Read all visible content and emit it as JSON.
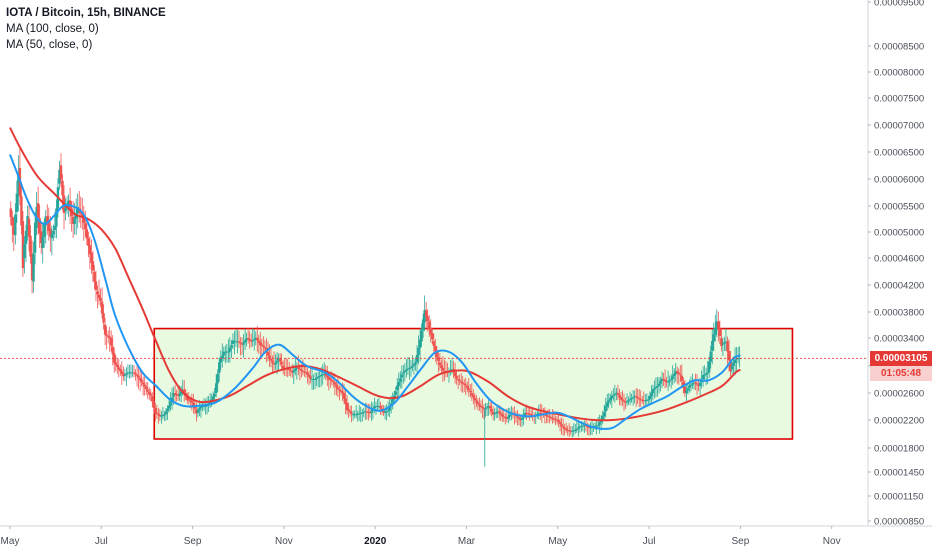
{
  "legend": {
    "title": "IOTA / Bitcoin, 15h, BINANCE",
    "ma100": "MA (100, close, 0)",
    "ma50": "MA (50, close, 0)"
  },
  "colors": {
    "ma100": "#e53935",
    "ma50": "#2196f3",
    "up_candle": "#26a69a",
    "down_candle": "#ef5350",
    "range_fill": "#e8fbe0",
    "range_stroke": "#e00000",
    "price_tag": "#e53935"
  },
  "price_tag": {
    "price": "0.00003105",
    "countdown": "01:05:48"
  },
  "chart_data": {
    "type": "line",
    "title": "IOTA / Bitcoin, 15h, BINANCE",
    "y_scale": "log",
    "ylim": [
      8.1e-06,
      1.1e-05
    ],
    "y_ticks": [
      "0.00000850",
      "0.00001150",
      "0.00001450",
      "0.00001800",
      "0.00002200",
      "0.00002600",
      "0.00003000",
      "0.00003400",
      "0.00003800",
      "0.00004200",
      "0.00004600",
      "0.00005000",
      "0.00005500",
      "0.00006000",
      "0.00006500",
      "0.00007000",
      "0.00007500",
      "0.00008000",
      "0.00008500",
      "0.00009500"
    ],
    "x_ticks": [
      {
        "label": "May",
        "t": 0.0
      },
      {
        "label": "Jul",
        "t": 1.0
      },
      {
        "label": "Sep",
        "t": 2.0
      },
      {
        "label": "Nov",
        "t": 3.0
      },
      {
        "label": "2020",
        "t": 4.0,
        "bold": true
      },
      {
        "label": "Mar",
        "t": 5.0
      },
      {
        "label": "May",
        "t": 6.0
      },
      {
        "label": "Jul",
        "t": 7.0
      },
      {
        "label": "Sep",
        "t": 8.0
      },
      {
        "label": "Nov",
        "t": 9.0
      }
    ],
    "range_box": {
      "t_start": 1.58,
      "t_end": 8.57,
      "y_low": 1.92e-05,
      "y_high": 3.54e-05
    },
    "current_price": 3.105e-05,
    "series": [
      {
        "name": "MA (100, close, 0)",
        "points": [
          [
            0.0,
            6.95e-05
          ],
          [
            0.12,
            6.55e-05
          ],
          [
            0.3,
            6.05e-05
          ],
          [
            0.5,
            5.7e-05
          ],
          [
            0.7,
            5.35e-05
          ],
          [
            0.85,
            5.25e-05
          ],
          [
            1.0,
            5.05e-05
          ],
          [
            1.15,
            4.75e-05
          ],
          [
            1.3,
            4.3e-05
          ],
          [
            1.45,
            3.85e-05
          ],
          [
            1.6,
            3.35e-05
          ],
          [
            1.75,
            2.9e-05
          ],
          [
            1.9,
            2.6e-05
          ],
          [
            2.05,
            2.47e-05
          ],
          [
            2.2,
            2.47e-05
          ],
          [
            2.4,
            2.55e-05
          ],
          [
            2.6,
            2.7e-05
          ],
          [
            2.8,
            2.85e-05
          ],
          [
            3.0,
            2.95e-05
          ],
          [
            3.2,
            3e-05
          ],
          [
            3.4,
            2.95e-05
          ],
          [
            3.6,
            2.83e-05
          ],
          [
            3.8,
            2.7e-05
          ],
          [
            4.0,
            2.57e-05
          ],
          [
            4.15,
            2.52e-05
          ],
          [
            4.3,
            2.55e-05
          ],
          [
            4.5,
            2.7e-05
          ],
          [
            4.7,
            2.87e-05
          ],
          [
            4.9,
            2.93e-05
          ],
          [
            5.05,
            2.9e-05
          ],
          [
            5.25,
            2.75e-05
          ],
          [
            5.45,
            2.55e-05
          ],
          [
            5.65,
            2.4e-05
          ],
          [
            5.85,
            2.32e-05
          ],
          [
            6.0,
            2.28e-05
          ],
          [
            6.2,
            2.23e-05
          ],
          [
            6.4,
            2.2e-05
          ],
          [
            6.6,
            2.2e-05
          ],
          [
            6.8,
            2.23e-05
          ],
          [
            7.0,
            2.28e-05
          ],
          [
            7.2,
            2.35e-05
          ],
          [
            7.4,
            2.45e-05
          ],
          [
            7.6,
            2.57e-05
          ],
          [
            7.8,
            2.7e-05
          ],
          [
            7.95,
            2.9e-05
          ],
          [
            8.0,
            2.94e-05
          ]
        ]
      },
      {
        "name": "MA (50, close, 0)",
        "points": [
          [
            0.0,
            6.45e-05
          ],
          [
            0.08,
            6.1e-05
          ],
          [
            0.18,
            5.65e-05
          ],
          [
            0.28,
            5.3e-05
          ],
          [
            0.38,
            5.15e-05
          ],
          [
            0.48,
            5.3e-05
          ],
          [
            0.58,
            5.5e-05
          ],
          [
            0.68,
            5.5e-05
          ],
          [
            0.8,
            5.35e-05
          ],
          [
            0.92,
            4.9e-05
          ],
          [
            1.05,
            4.25e-05
          ],
          [
            1.15,
            3.75e-05
          ],
          [
            1.3,
            3.25e-05
          ],
          [
            1.45,
            2.9e-05
          ],
          [
            1.6,
            2.7e-05
          ],
          [
            1.75,
            2.5e-05
          ],
          [
            1.9,
            2.4e-05
          ],
          [
            2.05,
            2.4e-05
          ],
          [
            2.25,
            2.45e-05
          ],
          [
            2.45,
            2.65e-05
          ],
          [
            2.65,
            2.95e-05
          ],
          [
            2.8,
            3.2e-05
          ],
          [
            2.95,
            3.3e-05
          ],
          [
            3.1,
            3.15e-05
          ],
          [
            3.25,
            3e-05
          ],
          [
            3.45,
            2.9e-05
          ],
          [
            3.6,
            2.75e-05
          ],
          [
            3.75,
            2.55e-05
          ],
          [
            3.9,
            2.4e-05
          ],
          [
            4.05,
            2.33e-05
          ],
          [
            4.2,
            2.43e-05
          ],
          [
            4.35,
            2.68e-05
          ],
          [
            4.5,
            2.95e-05
          ],
          [
            4.65,
            3.18e-05
          ],
          [
            4.8,
            3.2e-05
          ],
          [
            4.95,
            3.05e-05
          ],
          [
            5.1,
            2.75e-05
          ],
          [
            5.25,
            2.5e-05
          ],
          [
            5.4,
            2.35e-05
          ],
          [
            5.55,
            2.27e-05
          ],
          [
            5.7,
            2.25e-05
          ],
          [
            5.85,
            2.28e-05
          ],
          [
            6.0,
            2.3e-05
          ],
          [
            6.15,
            2.23e-05
          ],
          [
            6.3,
            2.13e-05
          ],
          [
            6.45,
            2.07e-05
          ],
          [
            6.6,
            2.08e-05
          ],
          [
            6.75,
            2.22e-05
          ],
          [
            6.9,
            2.35e-05
          ],
          [
            7.05,
            2.45e-05
          ],
          [
            7.2,
            2.55e-05
          ],
          [
            7.35,
            2.68e-05
          ],
          [
            7.5,
            2.78e-05
          ],
          [
            7.65,
            2.78e-05
          ],
          [
            7.8,
            2.9e-05
          ],
          [
            7.92,
            3.1e-05
          ],
          [
            8.0,
            3.15e-05
          ]
        ]
      },
      {
        "name": "Price",
        "points": [
          [
            0.0,
            5.45e-05
          ],
          [
            0.05,
            4.95e-05
          ],
          [
            0.1,
            6.2e-05
          ],
          [
            0.15,
            4.6e-05
          ],
          [
            0.2,
            5.25e-05
          ],
          [
            0.25,
            4.25e-05
          ],
          [
            0.3,
            5.55e-05
          ],
          [
            0.35,
            4.75e-05
          ],
          [
            0.4,
            5.3e-05
          ],
          [
            0.45,
            4.9e-05
          ],
          [
            0.5,
            5.1e-05
          ],
          [
            0.55,
            6.25e-05
          ],
          [
            0.6,
            5.4e-05
          ],
          [
            0.65,
            5.6e-05
          ],
          [
            0.7,
            5.15e-05
          ],
          [
            0.75,
            5.45e-05
          ],
          [
            0.8,
            5.3e-05
          ],
          [
            0.85,
            4.9e-05
          ],
          [
            0.9,
            4.55e-05
          ],
          [
            0.95,
            4.1e-05
          ],
          [
            1.0,
            3.95e-05
          ],
          [
            1.05,
            3.45e-05
          ],
          [
            1.1,
            3.4e-05
          ],
          [
            1.15,
            3.05e-05
          ],
          [
            1.2,
            2.95e-05
          ],
          [
            1.25,
            2.85e-05
          ],
          [
            1.3,
            2.9e-05
          ],
          [
            1.35,
            2.9e-05
          ],
          [
            1.4,
            2.85e-05
          ],
          [
            1.45,
            2.75e-05
          ],
          [
            1.5,
            2.65e-05
          ],
          [
            1.55,
            2.55e-05
          ],
          [
            1.6,
            2.3e-05
          ],
          [
            1.65,
            2.25e-05
          ],
          [
            1.7,
            2.28e-05
          ],
          [
            1.75,
            2.4e-05
          ],
          [
            1.8,
            2.6e-05
          ],
          [
            1.85,
            2.55e-05
          ],
          [
            1.9,
            2.65e-05
          ],
          [
            1.95,
            2.5e-05
          ],
          [
            2.0,
            2.45e-05
          ],
          [
            2.05,
            2.3e-05
          ],
          [
            2.1,
            2.4e-05
          ],
          [
            2.15,
            2.4e-05
          ],
          [
            2.2,
            2.45e-05
          ],
          [
            2.25,
            2.6e-05
          ],
          [
            2.3,
            3.05e-05
          ],
          [
            2.35,
            3.2e-05
          ],
          [
            2.4,
            3.2e-05
          ],
          [
            2.45,
            3.35e-05
          ],
          [
            2.5,
            3.35e-05
          ],
          [
            2.55,
            3.3e-05
          ],
          [
            2.6,
            3.4e-05
          ],
          [
            2.65,
            3.35e-05
          ],
          [
            2.7,
            3.4e-05
          ],
          [
            2.75,
            3.3e-05
          ],
          [
            2.8,
            3.25e-05
          ],
          [
            2.85,
            3.1e-05
          ],
          [
            2.9,
            3.02e-05
          ],
          [
            2.95,
            3.1e-05
          ],
          [
            3.0,
            2.97e-05
          ],
          [
            3.05,
            2.95e-05
          ],
          [
            3.1,
            2.9e-05
          ],
          [
            3.15,
            2.98e-05
          ],
          [
            3.2,
            2.92e-05
          ],
          [
            3.25,
            2.9e-05
          ],
          [
            3.3,
            2.8e-05
          ],
          [
            3.35,
            2.8e-05
          ],
          [
            3.4,
            2.85e-05
          ],
          [
            3.45,
            2.88e-05
          ],
          [
            3.5,
            2.8e-05
          ],
          [
            3.55,
            2.75e-05
          ],
          [
            3.6,
            2.65e-05
          ],
          [
            3.65,
            2.6e-05
          ],
          [
            3.7,
            2.35e-05
          ],
          [
            3.75,
            2.28e-05
          ],
          [
            3.8,
            2.28e-05
          ],
          [
            3.85,
            2.3e-05
          ],
          [
            3.9,
            2.32e-05
          ],
          [
            3.95,
            2.3e-05
          ],
          [
            4.0,
            2.4e-05
          ],
          [
            4.05,
            2.4e-05
          ],
          [
            4.1,
            2.3e-05
          ],
          [
            4.15,
            2.33e-05
          ],
          [
            4.2,
            2.5e-05
          ],
          [
            4.25,
            2.7e-05
          ],
          [
            4.3,
            2.88e-05
          ],
          [
            4.35,
            2.95e-05
          ],
          [
            4.4,
            2.98e-05
          ],
          [
            4.45,
            3.05e-05
          ],
          [
            4.5,
            3.35e-05
          ],
          [
            4.55,
            3.82e-05
          ],
          [
            4.6,
            3.55e-05
          ],
          [
            4.65,
            3.28e-05
          ],
          [
            4.7,
            3.05e-05
          ],
          [
            4.75,
            2.92e-05
          ],
          [
            4.8,
            2.9e-05
          ],
          [
            4.85,
            2.95e-05
          ],
          [
            4.9,
            2.8e-05
          ],
          [
            4.95,
            2.75e-05
          ],
          [
            5.0,
            2.7e-05
          ],
          [
            5.05,
            2.6e-05
          ],
          [
            5.1,
            2.48e-05
          ],
          [
            5.15,
            2.4e-05
          ],
          [
            5.2,
            2.35e-05
          ],
          [
            5.25,
            2.4e-05
          ],
          [
            5.3,
            2.28e-05
          ],
          [
            5.35,
            2.32e-05
          ],
          [
            5.4,
            2.25e-05
          ],
          [
            5.45,
            2.22e-05
          ],
          [
            5.5,
            2.3e-05
          ],
          [
            5.55,
            2.25e-05
          ],
          [
            5.6,
            2.2e-05
          ],
          [
            5.65,
            2.3e-05
          ],
          [
            5.7,
            2.28e-05
          ],
          [
            5.75,
            2.25e-05
          ],
          [
            5.8,
            2.3e-05
          ],
          [
            5.85,
            2.28e-05
          ],
          [
            5.9,
            2.25e-05
          ],
          [
            5.95,
            2.22e-05
          ],
          [
            6.0,
            2.2e-05
          ],
          [
            6.05,
            2.1e-05
          ],
          [
            6.1,
            2.05e-05
          ],
          [
            6.15,
            2.03e-05
          ],
          [
            6.2,
            2.05e-05
          ],
          [
            6.25,
            2.1e-05
          ],
          [
            6.3,
            2.12e-05
          ],
          [
            6.35,
            2.08e-05
          ],
          [
            6.4,
            2.1e-05
          ],
          [
            6.45,
            2.12e-05
          ],
          [
            6.5,
            2.25e-05
          ],
          [
            6.55,
            2.45e-05
          ],
          [
            6.6,
            2.55e-05
          ],
          [
            6.65,
            2.6e-05
          ],
          [
            6.7,
            2.5e-05
          ],
          [
            6.75,
            2.45e-05
          ],
          [
            6.8,
            2.5e-05
          ],
          [
            6.85,
            2.55e-05
          ],
          [
            6.9,
            2.5e-05
          ],
          [
            6.95,
            2.48e-05
          ],
          [
            7.0,
            2.5e-05
          ],
          [
            7.05,
            2.65e-05
          ],
          [
            7.1,
            2.7e-05
          ],
          [
            7.15,
            2.8e-05
          ],
          [
            7.2,
            2.75e-05
          ],
          [
            7.25,
            2.8e-05
          ],
          [
            7.3,
            2.92e-05
          ],
          [
            7.35,
            2.85e-05
          ],
          [
            7.4,
            2.6e-05
          ],
          [
            7.45,
            2.7e-05
          ],
          [
            7.5,
            2.75e-05
          ],
          [
            7.55,
            2.7e-05
          ],
          [
            7.6,
            2.85e-05
          ],
          [
            7.65,
            2.9e-05
          ],
          [
            7.7,
            3.35e-05
          ],
          [
            7.75,
            3.65e-05
          ],
          [
            7.8,
            3.3e-05
          ],
          [
            7.85,
            3.35e-05
          ],
          [
            7.9,
            2.95e-05
          ],
          [
            7.95,
            3.1e-05
          ],
          [
            8.0,
            3.11e-05
          ]
        ]
      }
    ]
  }
}
